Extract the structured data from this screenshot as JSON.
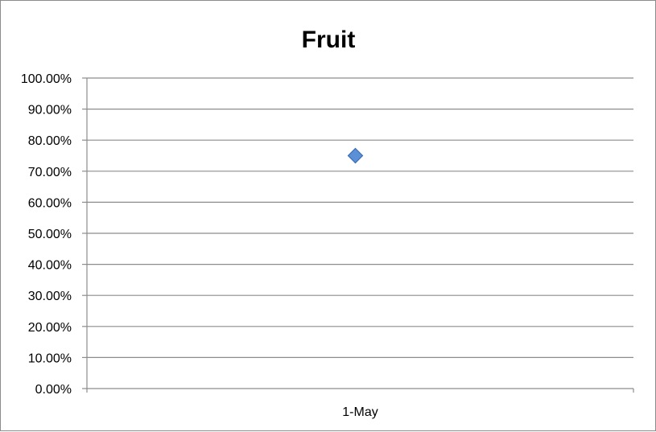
{
  "chart_data": {
    "type": "scatter",
    "title": "Fruit",
    "xlabel": "",
    "ylabel": "",
    "categories": [
      "1-May"
    ],
    "series": [
      {
        "values": [
          0.75
        ],
        "color": "#5b8fd6",
        "marker": "diamond"
      }
    ],
    "ylim": [
      0,
      1
    ],
    "y_ticks": [
      "0.00%",
      "10.00%",
      "20.00%",
      "30.00%",
      "40.00%",
      "50.00%",
      "60.00%",
      "70.00%",
      "80.00%",
      "90.00%",
      "100.00%"
    ],
    "grid": true,
    "legend": "none"
  },
  "colors": {
    "gridline": "#8c8c8c",
    "axis": "#8c8c8c",
    "marker_fill": "#5b8fd6",
    "marker_stroke": "#3a6db5"
  }
}
